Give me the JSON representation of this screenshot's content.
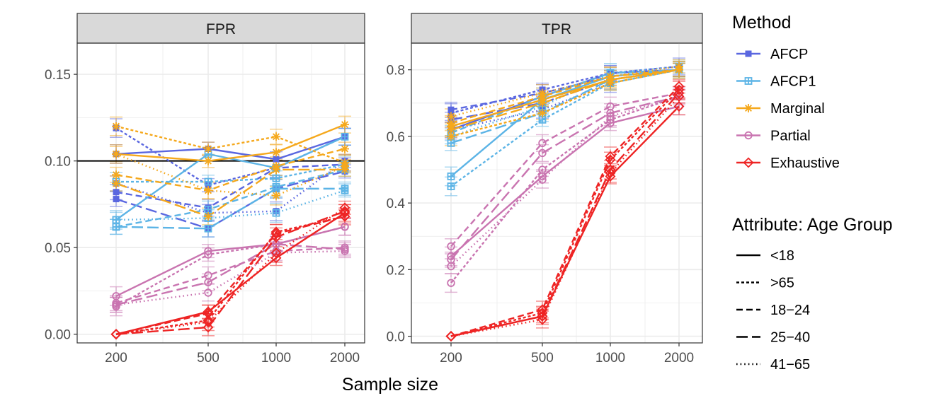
{
  "figure": {
    "xlabel": "Sample size"
  },
  "colors": {
    "AFCP": "#5A67E0",
    "AFCP1": "#5CB4E6",
    "Marginal": "#F5A81C",
    "Partial": "#C974B0",
    "Exhaustive": "#EE2424",
    "strip": "#D9D9D9",
    "grid": "#EBEBEB"
  },
  "legend": {
    "method_title": "Method",
    "methods": [
      {
        "name": "AFCP",
        "marker": "filled-square"
      },
      {
        "name": "AFCP1",
        "marker": "boxed-plus"
      },
      {
        "name": "Marginal",
        "marker": "asterisk"
      },
      {
        "name": "Partial",
        "marker": "circle"
      },
      {
        "name": "Exhaustive",
        "marker": "diamond"
      }
    ],
    "age_title": "Attribute: Age Group",
    "ages": [
      {
        "name": "<18",
        "linetype": "solid"
      },
      {
        "name": ">65",
        "linetype": "dashed-short"
      },
      {
        "name": "18−24",
        "linetype": "dashed"
      },
      {
        "name": "25−40",
        "linetype": "longdash"
      },
      {
        "name": "41−65",
        "linetype": "dotted"
      }
    ]
  },
  "chart_data": [
    {
      "type": "line",
      "facet": "FPR",
      "x": [
        200,
        500,
        1000,
        2000
      ],
      "x_scale": "log",
      "xlabel": "Sample size",
      "ylim": [
        -0.005,
        0.168
      ],
      "yticks": [
        0.0,
        0.05,
        0.1,
        0.15
      ],
      "ytick_labels": [
        "0.00",
        "0.05",
        "0.10",
        "0.15"
      ],
      "hline": 0.1,
      "series": [
        {
          "method": "AFCP",
          "age": "<18",
          "values": [
            0.104,
            0.107,
            0.101,
            0.114
          ]
        },
        {
          "method": "AFCP",
          "age": ">65",
          "values": [
            0.119,
            0.086,
            0.096,
            0.114
          ]
        },
        {
          "method": "AFCP",
          "age": "18−24",
          "values": [
            0.082,
            0.073,
            0.096,
            0.098
          ]
        },
        {
          "method": "AFCP",
          "age": "25−40",
          "values": [
            0.078,
            0.061,
            0.084,
            0.094
          ]
        },
        {
          "method": "AFCP",
          "age": "41−65",
          "values": [
            0.087,
            0.07,
            0.071,
            0.1
          ]
        },
        {
          "method": "AFCP1",
          "age": "<18",
          "values": [
            0.066,
            0.104,
            0.096,
            0.114
          ]
        },
        {
          "method": "AFCP1",
          "age": ">65",
          "values": [
            0.088,
            0.088,
            0.09,
            0.098
          ]
        },
        {
          "method": "AFCP1",
          "age": "18−24",
          "values": [
            0.062,
            0.072,
            0.085,
            0.095
          ]
        },
        {
          "method": "AFCP1",
          "age": "25−40",
          "values": [
            0.062,
            0.061,
            0.084,
            0.084
          ]
        },
        {
          "method": "AFCP1",
          "age": "41−65",
          "values": [
            0.066,
            0.067,
            0.07,
            0.083
          ]
        },
        {
          "method": "Marginal",
          "age": "<18",
          "values": [
            0.104,
            0.1,
            0.105,
            0.121
          ]
        },
        {
          "method": "Marginal",
          "age": ">65",
          "values": [
            0.12,
            0.107,
            0.114,
            0.099
          ]
        },
        {
          "method": "Marginal",
          "age": "18−24",
          "values": [
            0.092,
            0.083,
            0.097,
            0.107
          ]
        },
        {
          "method": "Marginal",
          "age": "25−40",
          "values": [
            0.087,
            0.068,
            0.095,
            0.095
          ]
        },
        {
          "method": "Marginal",
          "age": "41−65",
          "values": [
            0.104,
            0.083,
            0.08,
            0.097
          ]
        },
        {
          "method": "Partial",
          "age": "<18",
          "values": [
            0.022,
            0.048,
            0.052,
            0.062
          ]
        },
        {
          "method": "Partial",
          "age": ">65",
          "values": [
            0.016,
            0.046,
            0.052,
            0.062
          ]
        },
        {
          "method": "Partial",
          "age": "18−24",
          "values": [
            0.018,
            0.034,
            0.048,
            0.05
          ]
        },
        {
          "method": "Partial",
          "age": "25−40",
          "values": [
            0.017,
            0.03,
            0.052,
            0.049
          ]
        },
        {
          "method": "Partial",
          "age": "41−65",
          "values": [
            0.017,
            0.024,
            0.047,
            0.048
          ]
        },
        {
          "method": "Exhaustive",
          "age": "<18",
          "values": [
            0.0,
            0.013,
            0.044,
            0.07
          ]
        },
        {
          "method": "Exhaustive",
          "age": ">65",
          "values": [
            0.0,
            0.008,
            0.059,
            0.068
          ]
        },
        {
          "method": "Exhaustive",
          "age": "18−24",
          "values": [
            0.0,
            0.012,
            0.058,
            0.068
          ]
        },
        {
          "method": "Exhaustive",
          "age": "25−40",
          "values": [
            0.0,
            0.004,
            0.056,
            0.071
          ]
        },
        {
          "method": "Exhaustive",
          "age": "41−65",
          "values": [
            0.0,
            0.007,
            0.047,
            0.073
          ]
        }
      ]
    },
    {
      "type": "line",
      "facet": "TPR",
      "x": [
        200,
        500,
        1000,
        2000
      ],
      "x_scale": "log",
      "xlabel": "Sample size",
      "ylim": [
        -0.02,
        0.88
      ],
      "yticks": [
        0.0,
        0.2,
        0.4,
        0.6,
        0.8
      ],
      "ytick_labels": [
        "0.0",
        "0.2",
        "0.4",
        "0.6",
        "0.8"
      ],
      "series": [
        {
          "method": "AFCP",
          "age": "<18",
          "values": [
            0.62,
            0.72,
            0.79,
            0.8
          ]
        },
        {
          "method": "AFCP",
          "age": ">65",
          "values": [
            0.67,
            0.74,
            0.79,
            0.81
          ]
        },
        {
          "method": "AFCP",
          "age": "18−24",
          "values": [
            0.68,
            0.73,
            0.78,
            0.8
          ]
        },
        {
          "method": "AFCP",
          "age": "25−40",
          "values": [
            0.65,
            0.7,
            0.77,
            0.8
          ]
        },
        {
          "method": "AFCP",
          "age": "41−65",
          "values": [
            0.62,
            0.68,
            0.76,
            0.8
          ]
        },
        {
          "method": "AFCP1",
          "age": "<18",
          "values": [
            0.48,
            0.71,
            0.78,
            0.8
          ]
        },
        {
          "method": "AFCP1",
          "age": ">65",
          "values": [
            0.45,
            0.65,
            0.76,
            0.8
          ]
        },
        {
          "method": "AFCP1",
          "age": "18−24",
          "values": [
            0.61,
            0.72,
            0.79,
            0.8
          ]
        },
        {
          "method": "AFCP1",
          "age": "25−40",
          "values": [
            0.58,
            0.67,
            0.77,
            0.8
          ]
        },
        {
          "method": "AFCP1",
          "age": "41−65",
          "values": [
            0.6,
            0.69,
            0.79,
            0.81
          ]
        },
        {
          "method": "Marginal",
          "age": "<18",
          "values": [
            0.63,
            0.71,
            0.77,
            0.8
          ]
        },
        {
          "method": "Marginal",
          "age": ">65",
          "values": [
            0.6,
            0.67,
            0.76,
            0.8
          ]
        },
        {
          "method": "Marginal",
          "age": "18−24",
          "values": [
            0.64,
            0.72,
            0.78,
            0.8
          ]
        },
        {
          "method": "Marginal",
          "age": "25−40",
          "values": [
            0.62,
            0.7,
            0.77,
            0.8
          ]
        },
        {
          "method": "Marginal",
          "age": "41−65",
          "values": [
            0.66,
            0.73,
            0.78,
            0.81
          ]
        },
        {
          "method": "Partial",
          "age": "<18",
          "values": [
            0.24,
            0.48,
            0.64,
            0.69
          ]
        },
        {
          "method": "Partial",
          "age": ">65",
          "values": [
            0.16,
            0.5,
            0.65,
            0.72
          ]
        },
        {
          "method": "Partial",
          "age": "18−24",
          "values": [
            0.27,
            0.58,
            0.69,
            0.73
          ]
        },
        {
          "method": "Partial",
          "age": "25−40",
          "values": [
            0.23,
            0.55,
            0.67,
            0.72
          ]
        },
        {
          "method": "Partial",
          "age": "41−65",
          "values": [
            0.21,
            0.47,
            0.66,
            0.72
          ]
        },
        {
          "method": "Exhaustive",
          "age": "<18",
          "values": [
            0.0,
            0.06,
            0.48,
            0.69
          ]
        },
        {
          "method": "Exhaustive",
          "age": ">65",
          "values": [
            0.0,
            0.07,
            0.53,
            0.74
          ]
        },
        {
          "method": "Exhaustive",
          "age": "18−24",
          "values": [
            0.0,
            0.08,
            0.54,
            0.75
          ]
        },
        {
          "method": "Exhaustive",
          "age": "25−40",
          "values": [
            0.0,
            0.06,
            0.5,
            0.73
          ]
        },
        {
          "method": "Exhaustive",
          "age": "41−65",
          "values": [
            0.0,
            0.05,
            0.49,
            0.72
          ]
        }
      ]
    }
  ]
}
